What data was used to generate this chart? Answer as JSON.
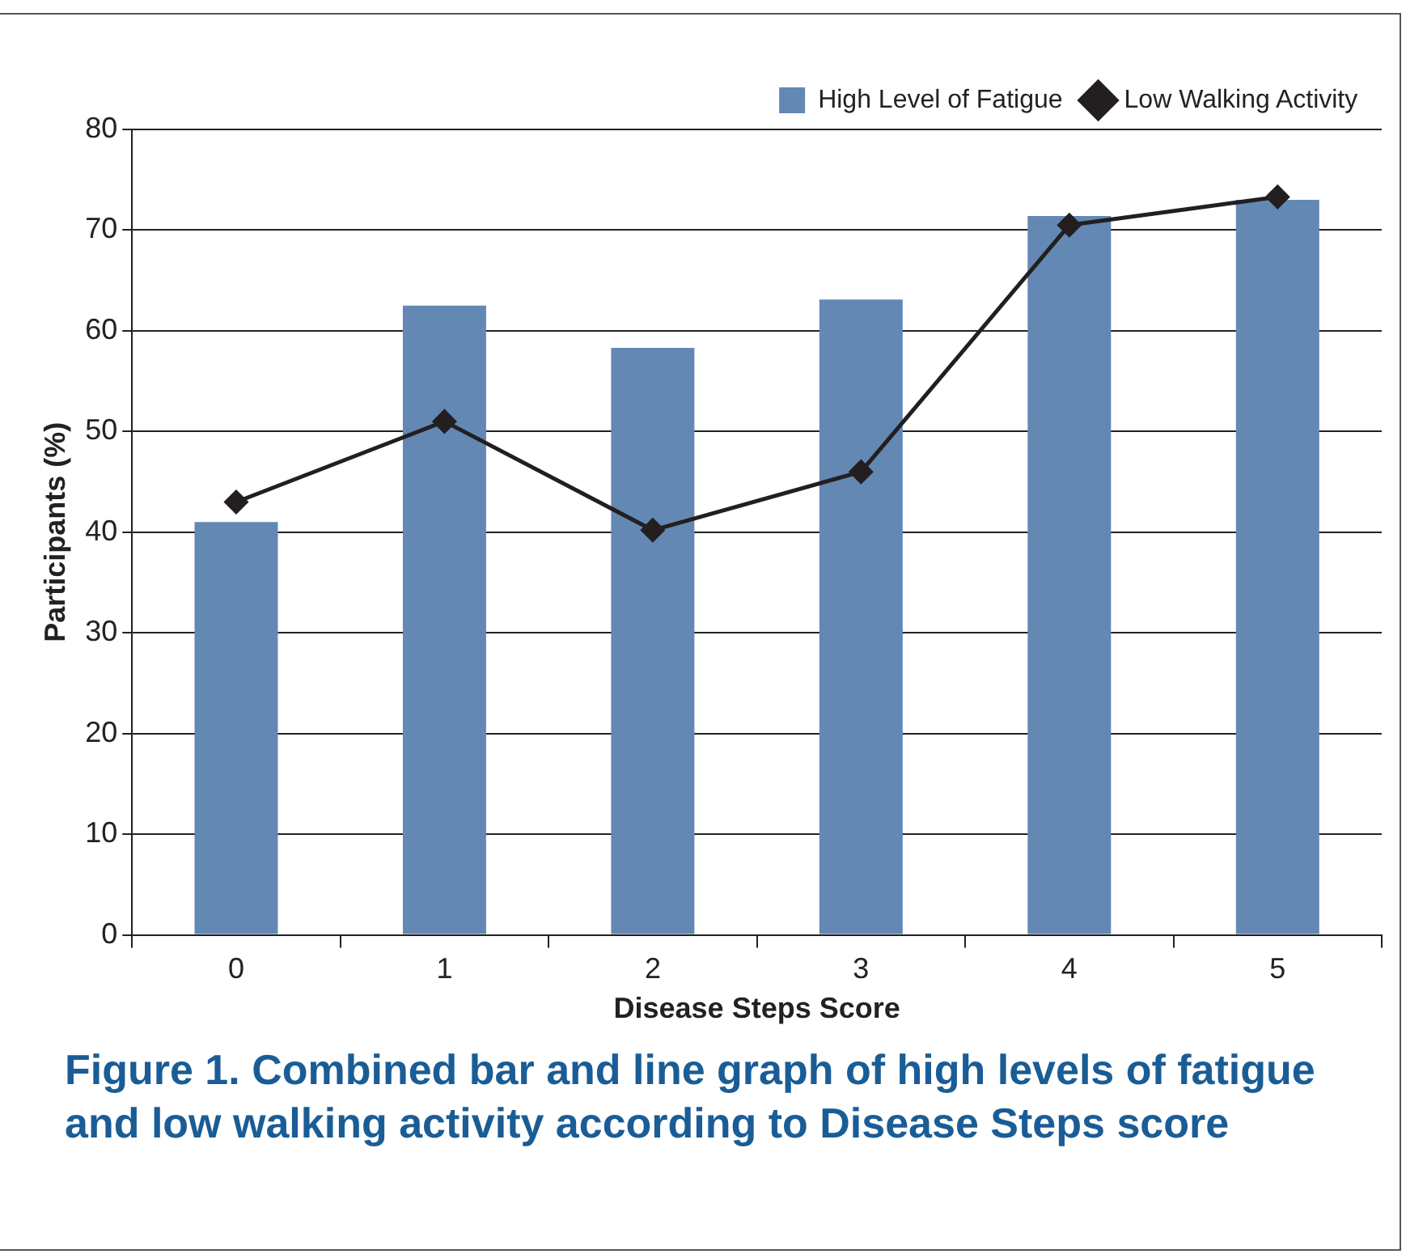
{
  "chart_data": {
    "type": "bar",
    "title": "Figure 1. Combined bar and line graph of high levels of fatigue and low walking activity according to Disease Steps score",
    "xlabel": "Disease Steps Score",
    "ylabel": "Participants (%)",
    "categories": [
      "0",
      "1",
      "2",
      "3",
      "4",
      "5"
    ],
    "series": [
      {
        "name": "High Level of Fatigue",
        "type": "bar",
        "color": "#6388b4",
        "values": [
          41,
          62.5,
          58.3,
          63.1,
          71.4,
          73.0
        ]
      },
      {
        "name": "Low Walking Activity",
        "type": "line",
        "color": "#231f20",
        "marker": "diamond",
        "values": [
          43,
          51,
          40.2,
          46,
          70.5,
          73.3
        ]
      }
    ],
    "ylim": [
      0,
      80
    ],
    "yticks": [
      0,
      10,
      20,
      30,
      40,
      50,
      60,
      70,
      80
    ],
    "grid": "y",
    "legend": "top right"
  }
}
